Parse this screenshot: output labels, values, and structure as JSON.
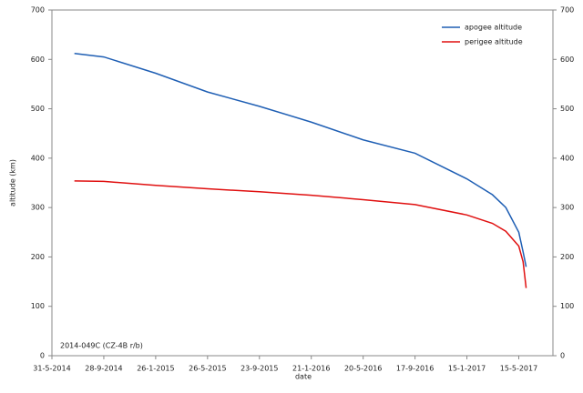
{
  "chart_data": {
    "type": "line",
    "x_label": "date",
    "y_label": "altitude (km)",
    "annotation": "2014-049C  (CZ-4B r/b)",
    "x": [
      "2014-07-22",
      "2014-09-28",
      "2015-01-26",
      "2015-05-26",
      "2015-09-23",
      "2016-01-21",
      "2016-05-20",
      "2016-09-17",
      "2017-01-15",
      "2017-03-15",
      "2017-04-15",
      "2017-05-15",
      "2017-05-25",
      "2017-06-01"
    ],
    "series": [
      {
        "name": "apogee altitude",
        "color": "#1f5fb4",
        "values": [
          612,
          605,
          572,
          534,
          505,
          473,
          437,
          410,
          358,
          326,
          300,
          250,
          210,
          180
        ]
      },
      {
        "name": "perigee altitude",
        "color": "#e01010",
        "values": [
          354,
          353,
          345,
          338,
          332,
          325,
          316,
          306,
          285,
          268,
          252,
          222,
          190,
          137
        ]
      }
    ],
    "xlim": [
      "2014-05-31",
      "2017-08-02"
    ],
    "xticks": [
      {
        "value": "2014-05-31",
        "label": "31-5-2014"
      },
      {
        "value": "2014-09-28",
        "label": "28-9-2014"
      },
      {
        "value": "2015-01-26",
        "label": "26-1-2015"
      },
      {
        "value": "2015-05-26",
        "label": "26-5-2015"
      },
      {
        "value": "2015-09-23",
        "label": "23-9-2015"
      },
      {
        "value": "2016-01-21",
        "label": "21-1-2016"
      },
      {
        "value": "2016-05-20",
        "label": "20-5-2016"
      },
      {
        "value": "2016-09-17",
        "label": "17-9-2016"
      },
      {
        "value": "2017-01-15",
        "label": "15-1-2017"
      },
      {
        "value": "2017-05-15",
        "label": "15-5-2017"
      }
    ],
    "ylim": [
      0,
      700
    ],
    "yticks": [
      0,
      100,
      200,
      300,
      400,
      500,
      600,
      700
    ],
    "y2lim": [
      0,
      700
    ],
    "y2ticks": [
      0,
      100,
      200,
      300,
      400,
      500,
      600,
      700
    ],
    "legend": "upper right"
  }
}
